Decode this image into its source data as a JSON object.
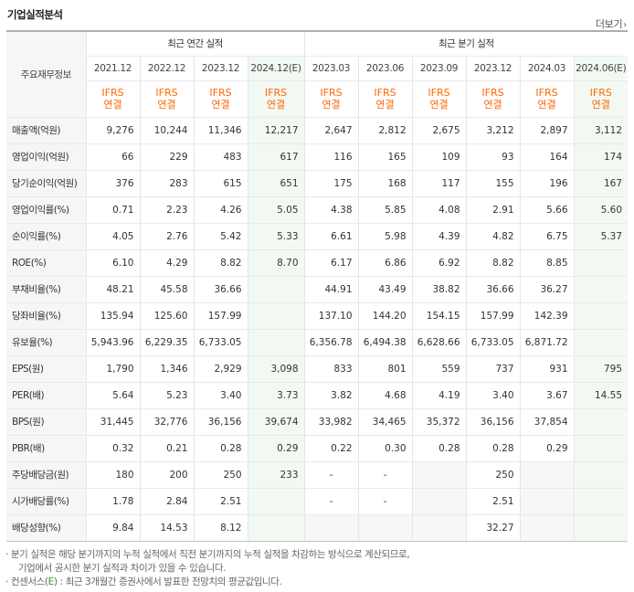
{
  "header": {
    "title": "기업실적분석",
    "more_label": "더보기",
    "more_arrow": "›"
  },
  "table": {
    "row_header_label": "주요재무정보",
    "annual_group_label": "최근 연간 실적",
    "quarter_group_label": "최근 분기 실적",
    "periods": [
      "2021.12",
      "2022.12",
      "2023.12",
      "2024.12(E)",
      "2023.03",
      "2023.06",
      "2023.09",
      "2023.12",
      "2024.03",
      "2024.06(E)"
    ],
    "estimate_columns": [
      3,
      9
    ],
    "ifrs_line1": "IFRS",
    "ifrs_line2": "연결",
    "rows": [
      {
        "label": "매출액(억원)",
        "values": [
          "9,276",
          "10,244",
          "11,346",
          "12,217",
          "2,647",
          "2,812",
          "2,675",
          "3,212",
          "2,897",
          "3,112"
        ]
      },
      {
        "label": "영업이익(억원)",
        "values": [
          "66",
          "229",
          "483",
          "617",
          "116",
          "165",
          "109",
          "93",
          "164",
          "174"
        ]
      },
      {
        "label": "당기순이익(억원)",
        "values": [
          "376",
          "283",
          "615",
          "651",
          "175",
          "168",
          "117",
          "155",
          "196",
          "167"
        ]
      },
      {
        "label": "영업이익률(%)",
        "values": [
          "0.71",
          "2.23",
          "4.26",
          "5.05",
          "4.38",
          "5.85",
          "4.08",
          "2.91",
          "5.66",
          "5.60"
        ]
      },
      {
        "label": "순이익률(%)",
        "values": [
          "4.05",
          "2.76",
          "5.42",
          "5.33",
          "6.61",
          "5.98",
          "4.39",
          "4.82",
          "6.75",
          "5.37"
        ]
      },
      {
        "label": "ROE(%)",
        "values": [
          "6.10",
          "4.29",
          "8.82",
          "8.70",
          "6.17",
          "6.86",
          "6.92",
          "8.82",
          "8.85",
          ""
        ]
      },
      {
        "label": "부채비율(%)",
        "values": [
          "48.21",
          "45.58",
          "36.66",
          "",
          "44.91",
          "43.49",
          "38.82",
          "36.66",
          "36.27",
          ""
        ]
      },
      {
        "label": "당좌비율(%)",
        "values": [
          "135.94",
          "125.60",
          "157.99",
          "",
          "137.10",
          "144.20",
          "154.15",
          "157.99",
          "142.39",
          ""
        ]
      },
      {
        "label": "유보율(%)",
        "values": [
          "5,943.96",
          "6,229.35",
          "6,733.05",
          "",
          "6,356.78",
          "6,494.38",
          "6,628.66",
          "6,733.05",
          "6,871.72",
          ""
        ]
      },
      {
        "label": "EPS(원)",
        "values": [
          "1,790",
          "1,346",
          "2,929",
          "3,098",
          "833",
          "801",
          "559",
          "737",
          "931",
          "795"
        ]
      },
      {
        "label": "PER(배)",
        "values": [
          "5.64",
          "5.23",
          "3.40",
          "3.73",
          "3.82",
          "4.68",
          "4.19",
          "3.40",
          "3.67",
          "14.55"
        ]
      },
      {
        "label": "BPS(원)",
        "values": [
          "31,445",
          "32,776",
          "36,156",
          "39,674",
          "33,982",
          "34,465",
          "35,372",
          "36,156",
          "37,854",
          ""
        ]
      },
      {
        "label": "PBR(배)",
        "values": [
          "0.32",
          "0.21",
          "0.28",
          "0.29",
          "0.22",
          "0.30",
          "0.28",
          "0.28",
          "0.29",
          ""
        ]
      },
      {
        "label": "주당배당금(원)",
        "values": [
          "180",
          "200",
          "250",
          "233",
          "-",
          "-",
          "",
          "250",
          "",
          ""
        ]
      },
      {
        "label": "시가배당률(%)",
        "values": [
          "1.78",
          "2.84",
          "2.51",
          "",
          "-",
          "-",
          "",
          "2.51",
          "",
          ""
        ]
      },
      {
        "label": "배당성향(%)",
        "values": [
          "9.84",
          "14.53",
          "8.12",
          "",
          "",
          "",
          "",
          "32.27",
          "",
          ""
        ]
      }
    ]
  },
  "notes": {
    "line1": "분기 실적은 해당 분기까지의 누적 실적에서 직전 분기까지의 누적 실적을 차감하는 방식으로 계산되므로,",
    "line2": "기업에서 공시한 분기 실적과 차이가 있을 수 있습니다.",
    "line3_prefix": "컨센서스(",
    "line3_e": "E",
    "line3_suffix": ") : 최근 3개월간 증권사에서 발표한 전망치의 평균값입니다."
  }
}
